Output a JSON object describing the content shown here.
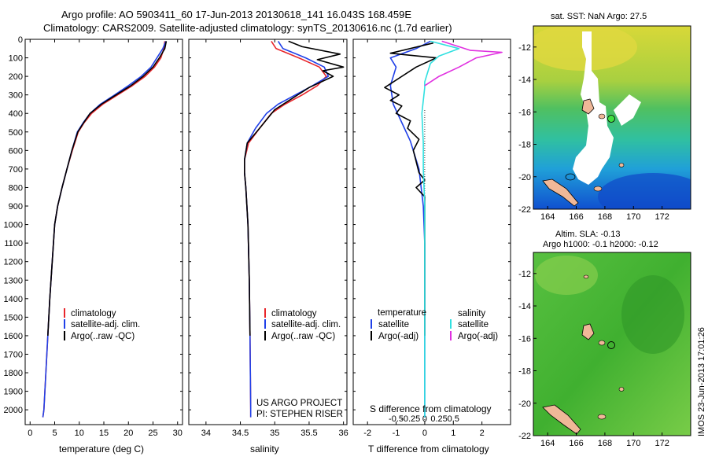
{
  "header": {
    "line1": "Argo profile: AO 5903411_60 17-Jun-2013 20130618_141 16.043S 168.459E",
    "line2": "Climatology: CARS2009. Satellite-adjusted climatology: synTS_20130616.nc (1.7d earlier)"
  },
  "colors": {
    "climatology": "#e8262b",
    "satellite": "#2040e8",
    "argo": "#000000",
    "sal_satellite": "#30e0e0",
    "sal_argo": "#e030e0"
  },
  "chart_data": [
    {
      "type": "line",
      "id": "temperature",
      "xlabel": "temperature (deg C)",
      "ylabel": "",
      "xlim": [
        -1,
        31
      ],
      "ylim": [
        2080,
        0
      ],
      "xticks": [
        0,
        5,
        10,
        15,
        20,
        25,
        30
      ],
      "yticks": [
        0,
        100,
        200,
        300,
        400,
        500,
        600,
        700,
        800,
        900,
        1000,
        1100,
        1200,
        1300,
        1400,
        1500,
        1600,
        1700,
        1800,
        1900,
        2000
      ],
      "legend": {
        "position": "lower-left",
        "entries": [
          "climatology",
          "satellite-adj. clim.",
          "Argo(..raw -QC)"
        ]
      },
      "series": [
        {
          "name": "climatology",
          "color": "#e8262b",
          "points": [
            [
              27.4,
              10
            ],
            [
              27.2,
              50
            ],
            [
              26.6,
              100
            ],
            [
              25.3,
              150
            ],
            [
              23.4,
              200
            ],
            [
              20.8,
              250
            ],
            [
              17.8,
              300
            ],
            [
              14.8,
              350
            ],
            [
              12.5,
              400
            ],
            [
              11.0,
              450
            ],
            [
              9.8,
              500
            ],
            [
              8.6,
              600
            ],
            [
              7.5,
              700
            ],
            [
              6.5,
              800
            ],
            [
              5.6,
              900
            ],
            [
              5.0,
              1000
            ],
            [
              4.5,
              1200
            ],
            [
              4.0,
              1400
            ],
            [
              3.6,
              1600
            ],
            [
              3.2,
              1800
            ],
            [
              2.8,
              2000
            ],
            [
              2.6,
              2040
            ]
          ]
        },
        {
          "name": "satellite-adj. clim.",
          "color": "#2040e8",
          "points": [
            [
              27.6,
              10
            ],
            [
              27.0,
              50
            ],
            [
              25.8,
              100
            ],
            [
              24.6,
              150
            ],
            [
              22.6,
              200
            ],
            [
              20.0,
              250
            ],
            [
              17.2,
              300
            ],
            [
              14.3,
              350
            ],
            [
              12.2,
              400
            ],
            [
              10.8,
              450
            ],
            [
              9.6,
              500
            ],
            [
              8.5,
              600
            ],
            [
              7.5,
              700
            ],
            [
              6.5,
              800
            ],
            [
              5.6,
              900
            ],
            [
              5.0,
              1000
            ],
            [
              4.5,
              1200
            ],
            [
              4.0,
              1400
            ],
            [
              3.6,
              1600
            ],
            [
              3.2,
              1800
            ],
            [
              2.8,
              2000
            ],
            [
              2.6,
              2040
            ]
          ]
        },
        {
          "name": "Argo(..raw -QC)",
          "color": "#000000",
          "points": [
            [
              27.7,
              10
            ],
            [
              27.4,
              50
            ],
            [
              26.3,
              100
            ],
            [
              25.0,
              150
            ],
            [
              23.0,
              200
            ],
            [
              20.5,
              250
            ],
            [
              17.5,
              300
            ],
            [
              14.5,
              350
            ],
            [
              12.2,
              400
            ],
            [
              10.9,
              450
            ],
            [
              9.7,
              500
            ],
            [
              8.5,
              600
            ],
            [
              7.5,
              700
            ],
            [
              6.5,
              800
            ],
            [
              5.6,
              900
            ],
            [
              5.0,
              1000
            ],
            [
              4.5,
              1200
            ],
            [
              4.0,
              1400
            ],
            [
              3.6,
              1600
            ]
          ]
        }
      ]
    },
    {
      "type": "line",
      "id": "salinity",
      "xlabel": "salinity",
      "ylabel": "",
      "xlim": [
        33.75,
        36.05
      ],
      "ylim": [
        2080,
        0
      ],
      "xticks": [
        34,
        34.5,
        35,
        35.5,
        36
      ],
      "xticklabels": [
        "34",
        "34.5",
        "35",
        "35.5",
        "36"
      ],
      "legend": {
        "position": "lower-center",
        "entries": [
          "climatology",
          "satellite-adj. clim.",
          "Argo(..raw -QC)"
        ]
      },
      "credit": [
        "US ARGO PROJECT",
        "PI: STEPHEN RISER"
      ],
      "series": [
        {
          "name": "climatology",
          "color": "#e8262b",
          "points": [
            [
              34.95,
              10
            ],
            [
              35.02,
              50
            ],
            [
              35.35,
              100
            ],
            [
              35.65,
              150
            ],
            [
              35.75,
              200
            ],
            [
              35.62,
              250
            ],
            [
              35.4,
              300
            ],
            [
              35.15,
              350
            ],
            [
              34.95,
              400
            ],
            [
              34.78,
              480
            ],
            [
              34.62,
              560
            ],
            [
              34.56,
              650
            ],
            [
              34.56,
              720
            ],
            [
              34.58,
              800
            ],
            [
              34.61,
              1000
            ],
            [
              34.63,
              1300
            ],
            [
              34.64,
              1600
            ],
            [
              34.65,
              2000
            ],
            [
              34.65,
              2040
            ]
          ]
        },
        {
          "name": "satellite-adj. clim.",
          "color": "#2040e8",
          "points": [
            [
              35.05,
              10
            ],
            [
              35.12,
              50
            ],
            [
              35.45,
              100
            ],
            [
              35.72,
              150
            ],
            [
              35.78,
              200
            ],
            [
              35.55,
              250
            ],
            [
              35.3,
              300
            ],
            [
              35.05,
              350
            ],
            [
              34.88,
              400
            ],
            [
              34.72,
              480
            ],
            [
              34.6,
              560
            ],
            [
              34.56,
              650
            ],
            [
              34.56,
              720
            ],
            [
              34.58,
              800
            ],
            [
              34.61,
              1000
            ],
            [
              34.63,
              1300
            ],
            [
              34.64,
              1600
            ],
            [
              34.65,
              2000
            ],
            [
              34.65,
              2040
            ]
          ]
        },
        {
          "name": "Argo(..raw -QC)",
          "color": "#000000",
          "points": [
            [
              35.2,
              10
            ],
            [
              35.4,
              40
            ],
            [
              35.95,
              80
            ],
            [
              35.62,
              110
            ],
            [
              36.0,
              150
            ],
            [
              35.7,
              170
            ],
            [
              35.85,
              200
            ],
            [
              35.5,
              260
            ],
            [
              35.25,
              320
            ],
            [
              35.0,
              380
            ],
            [
              34.78,
              480
            ],
            [
              34.6,
              560
            ],
            [
              34.56,
              650
            ],
            [
              34.56,
              720
            ],
            [
              34.58,
              800
            ],
            [
              34.61,
              1000
            ],
            [
              34.63,
              1300
            ],
            [
              34.64,
              1600
            ]
          ]
        }
      ]
    },
    {
      "type": "line",
      "id": "difference",
      "xlabel": "T difference from climatology",
      "xlabel_top": "S difference from climatology",
      "xlim": [
        -2.5,
        3
      ],
      "ylim": [
        2080,
        0
      ],
      "xticks": [
        -2,
        -1,
        0,
        1,
        2
      ],
      "top_ticks": [
        {
          "v": -1,
          "label": "-0.5"
        },
        {
          "v": -0.5,
          "label": "-0.25"
        },
        {
          "v": 0,
          "label": "0"
        },
        {
          "v": 0.5,
          "label": "0.25"
        },
        {
          "v": 1,
          "label": "0.5"
        }
      ],
      "legend": {
        "position": "lower-center",
        "headers": [
          "temperature",
          "salinity"
        ],
        "entries": [
          "satellite",
          "Argo(-adj)",
          "satellite",
          "Argo(-adj)"
        ]
      },
      "series": [
        {
          "name": "satellite",
          "color": "#2040e8",
          "points": [
            [
              0.2,
              10
            ],
            [
              -0.3,
              50
            ],
            [
              -1.2,
              100
            ],
            [
              -1.0,
              150
            ],
            [
              -1.2,
              250
            ],
            [
              -1.1,
              350
            ],
            [
              -0.8,
              450
            ],
            [
              -0.5,
              550
            ],
            [
              -0.2,
              700
            ],
            [
              -0.05,
              900
            ],
            [
              0,
              1100
            ],
            [
              0,
              2040
            ]
          ]
        },
        {
          "name": "Argo(-adj)",
          "color": "#000000",
          "points": [
            [
              0.3,
              20
            ],
            [
              -1.2,
              75
            ],
            [
              0.4,
              100
            ],
            [
              -0.3,
              150
            ],
            [
              -1.4,
              260
            ],
            [
              -0.9,
              300
            ],
            [
              -1.2,
              330
            ],
            [
              -0.8,
              360
            ],
            [
              -1.0,
              400
            ],
            [
              -0.5,
              440
            ],
            [
              -0.6,
              480
            ],
            [
              -0.2,
              540
            ],
            [
              -0.4,
              600
            ],
            [
              -0.2,
              720
            ],
            [
              0,
              760
            ],
            [
              -0.3,
              800
            ],
            [
              0,
              850
            ],
            [
              0,
              1600
            ]
          ]
        },
        {
          "name": "satellite",
          "color": "#30e0e0",
          "points": [
            [
              0.2,
              10
            ],
            [
              1.2,
              50
            ],
            [
              0.5,
              90
            ],
            [
              0.2,
              130
            ],
            [
              0.1,
              180
            ],
            [
              0,
              230
            ],
            [
              0,
              260
            ],
            [
              -0.1,
              400
            ],
            [
              -0.05,
              560
            ],
            [
              -0.05,
              700
            ],
            [
              0,
              900
            ],
            [
              0,
              2040
            ]
          ]
        },
        {
          "name": "Argo(-adj)",
          "color": "#e030e0",
          "points": [
            [
              0.6,
              10
            ],
            [
              1.6,
              60
            ],
            [
              2.7,
              70
            ],
            [
              1.8,
              100
            ],
            [
              1.2,
              150
            ],
            [
              0.5,
              200
            ],
            [
              0,
              250
            ]
          ]
        }
      ]
    }
  ],
  "maps": {
    "sst": {
      "title": "sat. SST: NaN Argo: 27.5",
      "xticks": [
        "164",
        "166",
        "168",
        "170",
        "172"
      ],
      "yticks": [
        "-12",
        "-14",
        "-16",
        "-18",
        "-20",
        "-22"
      ]
    },
    "sla": {
      "title_line1": "Altim. SLA: -0.13",
      "title_line2": "Argo h1000: -0.1 h2000: -0.12",
      "xticks": [
        "164",
        "166",
        "168",
        "170",
        "172"
      ],
      "yticks": [
        "-12",
        "-14",
        "-16",
        "-18",
        "-20",
        "-22"
      ]
    }
  },
  "footer": {
    "stamp": "IMOS 23-Jun-2013 17:01:26"
  }
}
